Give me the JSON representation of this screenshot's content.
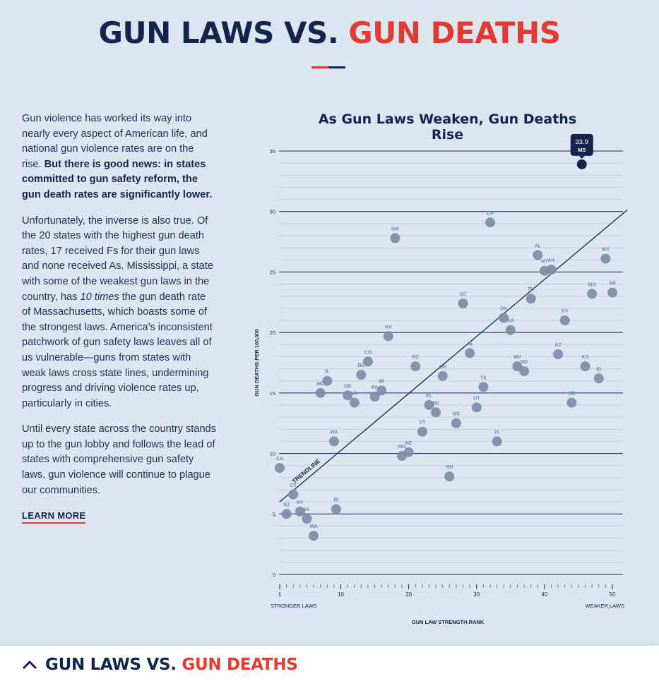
{
  "header": {
    "title_part1": "GUN LAWS VS.",
    "title_part2": "GUN DEATHS"
  },
  "intro": {
    "p1_text": "Gun violence has worked its way into nearly every aspect of American life, and national gun violence rates are on the rise.",
    "p1_bold": "But there is good news: in states committed to gun safety reform, the gun death rates are significantly lower.",
    "p2_a": "Unfortunately, the inverse is also true. Of the 20 states with the highest gun death rates, 17 received Fs for their gun laws and none received As. Mississippi, a state with some of the weakest gun laws in the country, has",
    "p2_em": "10 times",
    "p2_b": "the gun death rate of Massachusetts, which boasts some of the strongest laws. America’s inconsistent patchwork of gun safety laws leaves all of us vulnerable—guns from states with weak laws cross state lines, undermining progress and driving violence rates up, particularly in cities.",
    "p3": "Until every state across the country stands up to the gun lobby and follows the lead of states with comprehensive gun safety laws, gun violence will continue to plague our communities.",
    "learn_more": "LEARN MORE"
  },
  "bottom_bar": {
    "title_part1": "GUN LAWS VS.",
    "title_part2": "GUN DEATHS"
  },
  "colors": {
    "navy": "#14254d",
    "red": "#e23b32",
    "point": "#7c8aa6",
    "highlight": "#14254d",
    "background": "#dbe6f1"
  },
  "chart_data": {
    "type": "scatter",
    "title": "As Gun Laws Weaken, Gun Deaths Rise",
    "xlabel": "GUN LAW STRENGTH RANK",
    "ylabel": "GUN DEATHS PER 100,000",
    "x_left_label": "STRONGER LAWS",
    "x_right_label": "WEAKER LAWS",
    "trendline_label": "TRENDLINE",
    "xlim": [
      1,
      50
    ],
    "ylim": [
      0,
      35
    ],
    "x_ticks": [
      "1",
      "10",
      "20",
      "30",
      "40",
      "50"
    ],
    "x_tick_values": [
      1,
      10,
      20,
      30,
      40,
      50
    ],
    "y_ticks": [
      "0",
      "5",
      "10",
      "15",
      "20",
      "25",
      "30",
      "35"
    ],
    "y_tick_values": [
      0,
      5,
      10,
      15,
      20,
      25,
      30,
      35
    ],
    "trendline": {
      "x": [
        1,
        50
      ],
      "y": [
        6.0,
        29.1
      ]
    },
    "highlight": {
      "label": "MS",
      "value": "33.9",
      "x": 45.5,
      "y": 33.9
    },
    "points": [
      {
        "label": "CA",
        "x": 1,
        "y": 8.8
      },
      {
        "label": "NJ",
        "x": 2,
        "y": 5.0
      },
      {
        "label": "CT",
        "x": 3,
        "y": 6.6
      },
      {
        "label": "NY",
        "x": 4,
        "y": 5.2
      },
      {
        "label": "HI",
        "x": 5,
        "y": 4.6
      },
      {
        "label": "MA",
        "x": 6,
        "y": 3.2
      },
      {
        "label": "MD",
        "x": 7,
        "y": 15.0
      },
      {
        "label": "IL",
        "x": 8,
        "y": 16.0
      },
      {
        "label": "WA",
        "x": 9,
        "y": 11.0
      },
      {
        "label": "RI",
        "x": 9.3,
        "y": 5.4
      },
      {
        "label": "OR",
        "x": 11,
        "y": 14.8
      },
      {
        "label": "VA",
        "x": 12,
        "y": 14.2
      },
      {
        "label": "DE",
        "x": 13,
        "y": 16.5
      },
      {
        "label": "CO",
        "x": 14,
        "y": 17.6
      },
      {
        "label": "PA",
        "x": 15,
        "y": 14.7
      },
      {
        "label": "MI",
        "x": 16,
        "y": 15.2
      },
      {
        "label": "NV",
        "x": 17,
        "y": 19.7
      },
      {
        "label": "NM",
        "x": 18,
        "y": 27.8
      },
      {
        "label": "MN",
        "x": 19,
        "y": 9.8
      },
      {
        "label": "NE",
        "x": 20,
        "y": 10.1
      },
      {
        "label": "NC",
        "x": 21,
        "y": 17.2
      },
      {
        "label": "VT",
        "x": 22,
        "y": 11.8
      },
      {
        "label": "FL",
        "x": 23,
        "y": 14.0
      },
      {
        "label": "WI",
        "x": 24,
        "y": 13.4
      },
      {
        "label": "OH",
        "x": 25,
        "y": 16.4
      },
      {
        "label": "NH",
        "x": 26,
        "y": 8.1
      },
      {
        "label": "ME",
        "x": 27,
        "y": 12.5
      },
      {
        "label": "SC",
        "x": 28,
        "y": 22.4
      },
      {
        "label": "IN",
        "x": 29,
        "y": 18.3
      },
      {
        "label": "UT",
        "x": 30,
        "y": 13.8
      },
      {
        "label": "TX",
        "x": 31,
        "y": 15.5
      },
      {
        "label": "LA",
        "x": 32,
        "y": 29.1
      },
      {
        "label": "IA",
        "x": 33,
        "y": 11.0
      },
      {
        "label": "OK",
        "x": 34,
        "y": 21.2
      },
      {
        "label": "GA",
        "x": 35,
        "y": 20.2
      },
      {
        "label": "WV",
        "x": 36,
        "y": 17.2
      },
      {
        "label": "ND",
        "x": 37,
        "y": 16.8
      },
      {
        "label": "TN",
        "x": 38,
        "y": 22.8
      },
      {
        "label": "AL",
        "x": 39,
        "y": 26.4
      },
      {
        "label": "MT",
        "x": 40,
        "y": 25.1
      },
      {
        "label": "AK",
        "x": 41,
        "y": 25.2
      },
      {
        "label": "AZ",
        "x": 42,
        "y": 18.2
      },
      {
        "label": "KY",
        "x": 43,
        "y": 21.0
      },
      {
        "label": "SD",
        "x": 44,
        "y": 14.2
      },
      {
        "label": "KS",
        "x": 46,
        "y": 17.2
      },
      {
        "label": "MO",
        "x": 47,
        "y": 23.2
      },
      {
        "label": "ID",
        "x": 48,
        "y": 16.2
      },
      {
        "label": "WY",
        "x": 49,
        "y": 26.1
      },
      {
        "label": "AR",
        "x": 50,
        "y": 23.3
      }
    ]
  }
}
